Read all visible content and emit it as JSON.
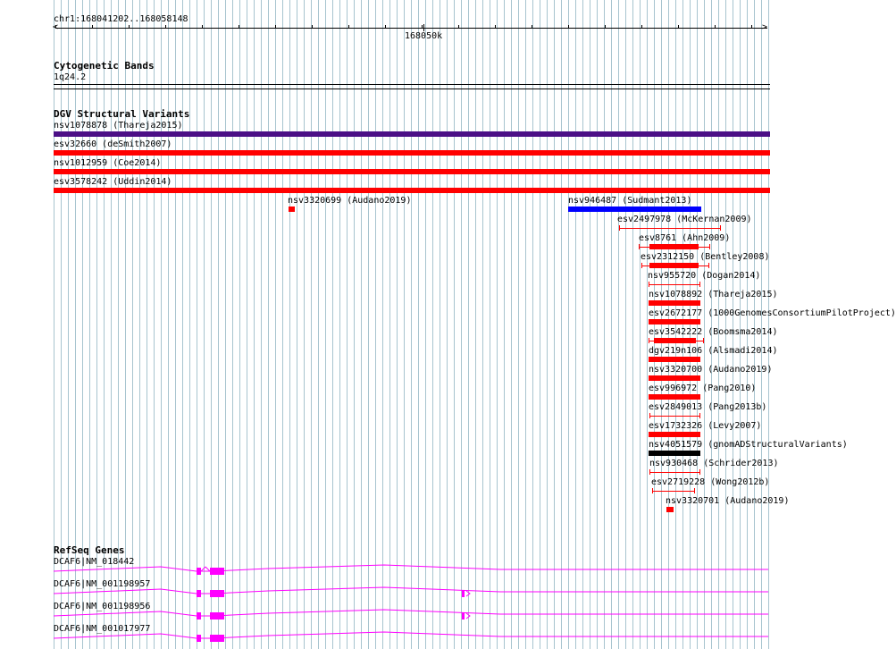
{
  "ruler": {
    "range_label": "chr1:168041202..168058148",
    "center_tick_label": "168050k"
  },
  "cytoband": {
    "title": "Cytogenetic Bands",
    "band_label": "1q24.2"
  },
  "dgv": {
    "title": "DGV Structural Variants",
    "full_span": [
      {
        "label": "nsv1078878 (Thareja2015)",
        "color": "#4b0f86"
      },
      {
        "label": "esv32660 (deSmith2007)",
        "color": "#ff0000"
      },
      {
        "label": "nsv1012959 (Coe2014)",
        "color": "#ff0000"
      },
      {
        "label": "esv3578242 (Uddin2014)",
        "color": "#ff0000"
      }
    ],
    "variants": [
      {
        "label": "nsv3320699 (Audano2019)",
        "color": "#ff0000"
      },
      {
        "label": "nsv946487 (Sudmant2013)",
        "color": "#0000ff"
      },
      {
        "label": "esv2497978 (McKernan2009)",
        "color": "#ff0000"
      },
      {
        "label": "esv8761 (Ahn2009)",
        "color": "#ff0000"
      },
      {
        "label": "esv2312150 (Bentley2008)",
        "color": "#ff0000"
      },
      {
        "label": "nsv955720 (Dogan2014)",
        "color": "#ff0000"
      },
      {
        "label": "nsv1078892 (Thareja2015)",
        "color": "#ff0000"
      },
      {
        "label": "esv2672177 (1000GenomesConsortiumPilotProject)",
        "color": "#ff0000"
      },
      {
        "label": "esv3542222 (Boomsma2014)",
        "color": "#ff0000"
      },
      {
        "label": "dgv219n106 (Alsmadi2014)",
        "color": "#ff0000"
      },
      {
        "label": "nsv3320700 (Audano2019)",
        "color": "#ff0000"
      },
      {
        "label": "esv996972 (Pang2010)",
        "color": "#ff0000"
      },
      {
        "label": "esv2849013 (Pang2013b)",
        "color": "#ff0000"
      },
      {
        "label": "esv1732326 (Levy2007)",
        "color": "#ff0000"
      },
      {
        "label": "nsv4051579 (gnomADStructuralVariants)",
        "color": "#000000"
      },
      {
        "label": "nsv930468 (Schrider2013)",
        "color": "#ff0000"
      },
      {
        "label": "esv2719228 (Wong2012b)",
        "color": "#ff0000"
      },
      {
        "label": "nsv3320701 (Audano2019)",
        "color": "#ff0000"
      }
    ]
  },
  "refseq": {
    "title": "RefSeq Genes",
    "gene_color": "#ff00ff",
    "transcripts": [
      {
        "label": "DCAF6|NM_018442"
      },
      {
        "label": "DCAF6|NM_001198957"
      },
      {
        "label": "DCAF6|NM_001198956"
      },
      {
        "label": "DCAF6|NM_001017977"
      }
    ]
  }
}
